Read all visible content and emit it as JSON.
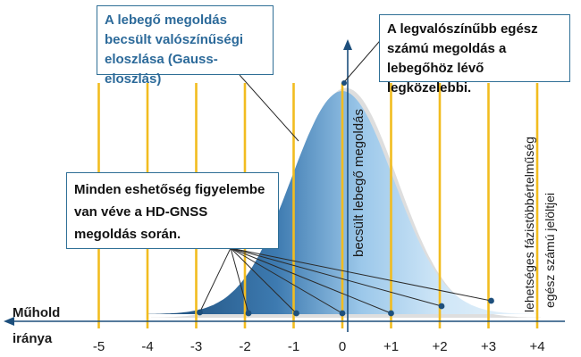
{
  "callouts": {
    "distribution": "A lebegő megoldás becsült valószínűségi eloszlása (Gauss-eloszlás)",
    "most_likely": "A legvalószínűbb egész számú megoldás a lebegőhöz lévő legközelebbi.",
    "all_possibilities": "Minden eshetőség figyelembe van véve a HD-GNSS megoldás során."
  },
  "labels": {
    "estimated_float": "becsült lebegő megoldás",
    "candidates_line1": "lehetséges fázistöbbértelműség",
    "candidates_line2": "egész számú jelöltjei",
    "satellite_line1": "Műhold",
    "satellite_line2": "iránya"
  },
  "axis": {
    "ticks": [
      "-5",
      "-4",
      "-3",
      "-2",
      "-1",
      "0",
      "+1",
      "+2",
      "+3",
      "+4"
    ],
    "values": [
      -5,
      -4,
      -3,
      -2,
      -1,
      0,
      1,
      2,
      3,
      4
    ]
  },
  "distribution": {
    "mean": 0,
    "sigma": 1.05
  },
  "candidate_points": [
    -3,
    -2,
    -1,
    0,
    1,
    2,
    3
  ],
  "colors": {
    "curve_dark": "#1d4f7c",
    "curve_light": "#c9e3f6",
    "shadow": "#dcdcdc",
    "integer_lines": "#f2bc1f",
    "callout_border": "#2f6f96",
    "blue_text": "#2c6a9a"
  }
}
